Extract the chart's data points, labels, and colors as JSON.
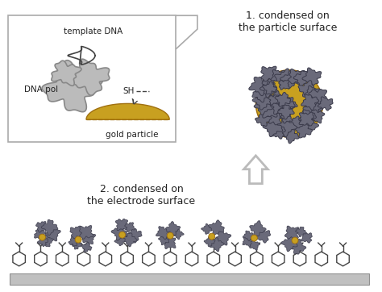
{
  "bg_color": "#ffffff",
  "box_edge_color": "#aaaaaa",
  "gold_color": "#c8a020",
  "gray_color": "#888888",
  "dark_gray": "#444444",
  "light_gray": "#bbbbbb",
  "enzyme_color": "#6a6a7a",
  "enzyme_edge": "#3a3a4a",
  "text_color": "#222222",
  "label_template_dna": "template DNA",
  "label_dna_pol": "DNA pol",
  "label_sh": "SH",
  "label_gold": "gold particle",
  "label_step1": "1. condensed on\nthe particle surface",
  "label_step2": "2. condensed on\nthe electrode surface",
  "figsize": [
    4.74,
    3.62
  ],
  "dpi": 100
}
